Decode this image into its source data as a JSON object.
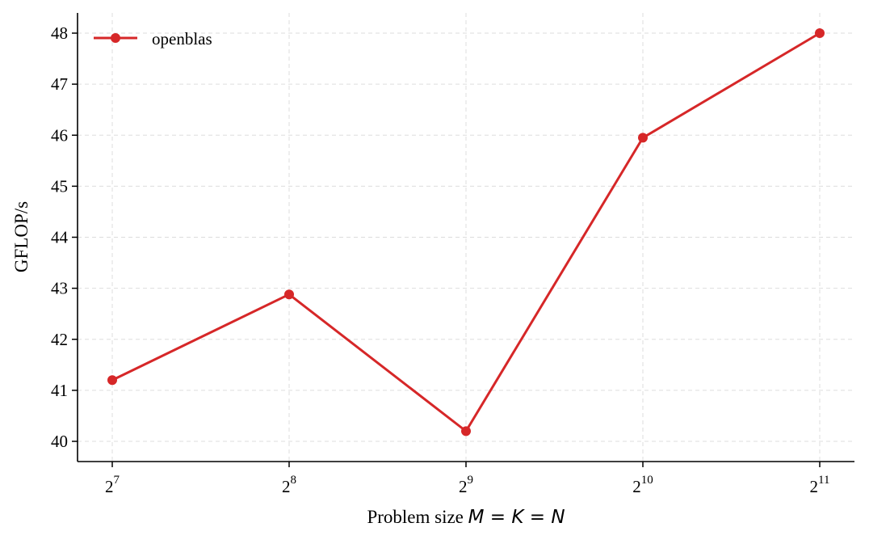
{
  "chart_data": {
    "type": "line",
    "xlabel": "Problem size ",
    "xlabel_math": "M = K = N",
    "ylabel": "GFLOP/s",
    "x_scale": "log2",
    "x": [
      128,
      256,
      512,
      1024,
      2048
    ],
    "x_tick_labels": [
      {
        "base": "2",
        "exp": "7"
      },
      {
        "base": "2",
        "exp": "8"
      },
      {
        "base": "2",
        "exp": "9"
      },
      {
        "base": "2",
        "exp": "10"
      },
      {
        "base": "2",
        "exp": "11"
      }
    ],
    "y_ticks": [
      40,
      41,
      42,
      43,
      44,
      45,
      46,
      47,
      48
    ],
    "ylim": [
      39.8,
      48.4
    ],
    "grid": true,
    "legend_position": "top-left",
    "series": [
      {
        "name": "openblas",
        "color": "#d62728",
        "marker": "circle",
        "values": [
          41.2,
          42.88,
          40.2,
          45.95,
          48.0
        ]
      }
    ]
  }
}
